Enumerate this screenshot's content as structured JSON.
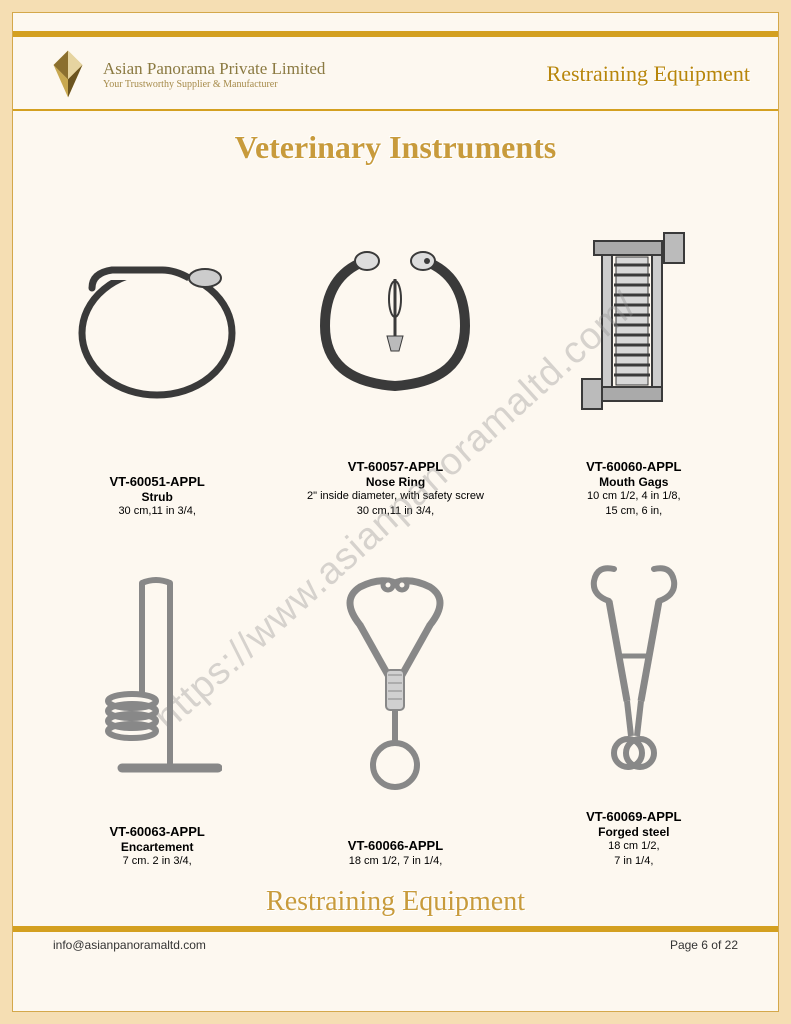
{
  "header": {
    "company_name": "Asian Panorama Private Limited",
    "tagline": "Your Trustworthy Supplier & Manufacturer",
    "category": "Restraining Equipment"
  },
  "main_title": "Veterinary Instruments",
  "watermark": "https://www.asianpanoramaltd.com/",
  "products": [
    {
      "code": "VT-60051-APPL",
      "name": "Strub",
      "spec": "30 cm,11 in 3/4,"
    },
    {
      "code": "VT-60057-APPL",
      "name": "Nose Ring",
      "spec": "2\" inside diameter, with safety screw\n30 cm,11 in 3/4,"
    },
    {
      "code": "VT-60060-APPL",
      "name": "Mouth Gags",
      "spec": "10 cm 1/2, 4 in 1/8,\n15 cm, 6 in,"
    },
    {
      "code": "VT-60063-APPL",
      "name": "Encartement",
      "spec": "7 cm. 2 in 3/4,"
    },
    {
      "code": "VT-60066-APPL",
      "name": "",
      "spec": "18 cm 1/2, 7 in 1/4,"
    },
    {
      "code": "VT-60069-APPL",
      "name": "Forged steel",
      "spec": "18 cm 1/2,\n7 in 1/4,"
    }
  ],
  "bottom_category": "Restraining Equipment",
  "footer": {
    "email": "info@asianpanoramaltd.com",
    "page_label": "Page 6 of 22"
  },
  "colors": {
    "frame_bg": "#f5deb3",
    "page_bg": "#fdf8f0",
    "gold_bar": "#d4a020",
    "title_color": "#c89b3c",
    "company_color": "#8b7a42"
  }
}
